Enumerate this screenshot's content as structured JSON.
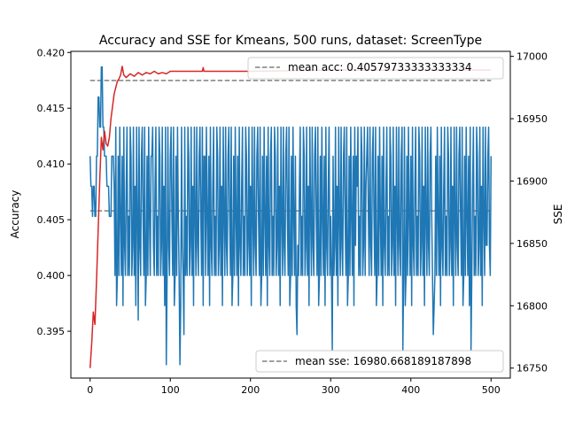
{
  "chart_data": {
    "type": "line",
    "title": "Accuracy and SSE for Kmeans, 500 runs, dataset: ScreenType",
    "xlabel": "",
    "ylabel_left": "Accuracy",
    "ylabel_right": "SSE",
    "xlim": [
      -24,
      524
    ],
    "ylim_left": [
      0.3908,
      0.4201
    ],
    "ylim_right": [
      16742,
      17004
    ],
    "x_ticks": [
      0,
      100,
      200,
      300,
      400,
      500
    ],
    "y_ticks_left": [
      0.395,
      0.4,
      0.405,
      0.41,
      0.415,
      0.42
    ],
    "y_ticks_right": [
      16750,
      16800,
      16850,
      16900,
      16950,
      17000
    ],
    "grid": false,
    "colors": {
      "accuracy": "#1f77b4",
      "sse": "#d62728",
      "mean": "#808080"
    },
    "series": [
      {
        "name": "accuracy",
        "axis": "left",
        "type": "periodic",
        "run_count": 500,
        "levels": [
          0.392,
          0.3947,
          0.3973,
          0.4,
          0.4027,
          0.4053,
          0.408,
          0.4107,
          0.4133
        ],
        "pattern": [
          3,
          8,
          5,
          3,
          7,
          2,
          8,
          4,
          3,
          6,
          8,
          3,
          5,
          3,
          8,
          7,
          3,
          4,
          8,
          3,
          6,
          2,
          8,
          5,
          3,
          8,
          4,
          3,
          7,
          8,
          5,
          3,
          8,
          2,
          3,
          7
        ],
        "head": [
          [
            0,
            0.4107
          ],
          [
            1,
            0.408
          ],
          [
            3,
            0.4053
          ],
          [
            4,
            0.408
          ],
          [
            6,
            0.4053
          ],
          [
            8,
            0.4107
          ],
          [
            10,
            0.416
          ],
          [
            12,
            0.4133
          ],
          [
            14,
            0.4187
          ],
          [
            16,
            0.4133
          ],
          [
            18,
            0.4107
          ],
          [
            21,
            0.408
          ],
          [
            24,
            0.4053
          ],
          [
            27,
            0.4107
          ],
          [
            30,
            0.408
          ]
        ],
        "outliers": [
          [
            57,
            0.3973
          ],
          [
            60,
            0.396
          ],
          [
            77,
            0.4107
          ],
          [
            95,
            0.392
          ],
          [
            100,
            0.4107
          ],
          [
            112,
            0.392
          ],
          [
            117,
            0.3947
          ],
          [
            142,
            0.4107
          ],
          [
            225,
            0.4107
          ],
          [
            258,
            0.3947
          ],
          [
            302,
            0.3933
          ],
          [
            332,
            0.4107
          ],
          [
            345,
            0.4107
          ],
          [
            390,
            0.3933
          ],
          [
            395,
            0.4107
          ],
          [
            428,
            0.3947
          ],
          [
            431,
            0.4107
          ],
          [
            475,
            0.3933
          ]
        ],
        "tail": [
          [
            495,
            0.4027
          ],
          [
            498,
            0.4027
          ],
          [
            500,
            0.4107
          ]
        ]
      },
      {
        "name": "sse",
        "axis": "right",
        "type": "path",
        "points": [
          [
            0,
            16750
          ],
          [
            2,
            16770
          ],
          [
            4,
            16795
          ],
          [
            6,
            16785
          ],
          [
            8,
            16820
          ],
          [
            10,
            16860
          ],
          [
            12,
            16900
          ],
          [
            14,
            16935
          ],
          [
            16,
            16925
          ],
          [
            18,
            16940
          ],
          [
            20,
            16930
          ],
          [
            22,
            16928
          ],
          [
            24,
            16935
          ],
          [
            26,
            16950
          ],
          [
            28,
            16960
          ],
          [
            30,
            16970
          ],
          [
            32,
            16975
          ],
          [
            34,
            16980
          ],
          [
            36,
            16982
          ],
          [
            38,
            16985
          ],
          [
            40,
            16992
          ],
          [
            42,
            16985
          ],
          [
            45,
            16983
          ],
          [
            50,
            16986
          ],
          [
            55,
            16984
          ],
          [
            60,
            16987
          ],
          [
            65,
            16985
          ],
          [
            70,
            16987
          ],
          [
            75,
            16986
          ],
          [
            80,
            16988
          ],
          [
            85,
            16986
          ],
          [
            90,
            16987
          ],
          [
            95,
            16986
          ],
          [
            100,
            16988
          ],
          [
            140,
            16988
          ],
          [
            141,
            16991
          ],
          [
            142,
            16988
          ],
          [
            200,
            16988
          ],
          [
            300,
            16989
          ],
          [
            400,
            16989
          ],
          [
            500,
            16989
          ]
        ]
      }
    ],
    "reference_lines": [
      {
        "axis": "left",
        "value": 0.4058,
        "x_range": [
          0,
          500
        ],
        "style": "dashed",
        "legend": "mean acc: 0.40579733333333334"
      },
      {
        "axis": "right",
        "value": 16980.668189187898,
        "x_range": [
          0,
          500
        ],
        "style": "dashed",
        "legend": "mean sse: 16980.668189187898"
      }
    ],
    "legend_placement": [
      "top-right",
      "bottom-right"
    ]
  }
}
